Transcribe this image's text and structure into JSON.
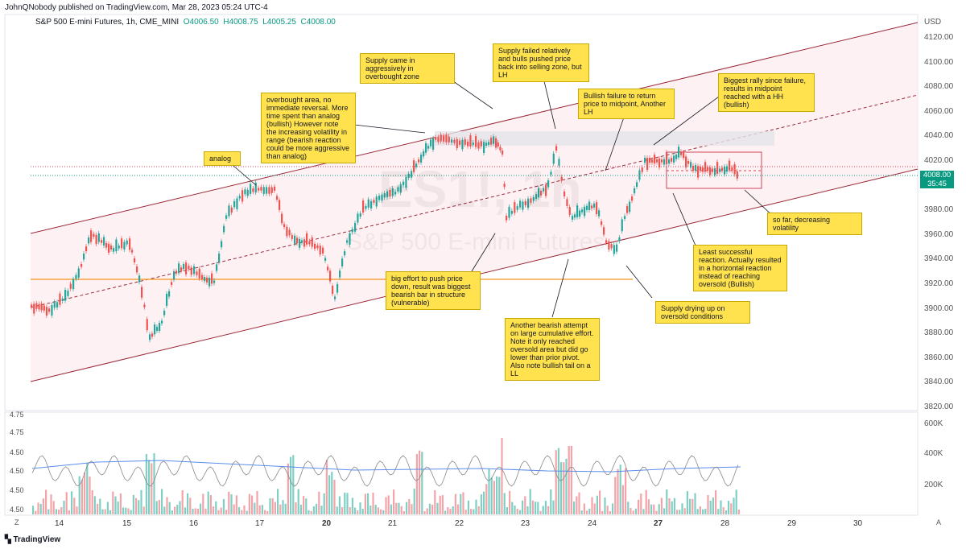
{
  "header": {
    "publisher_line": "JohnQNobody published on TradingView.com, Mar 28, 2023 05:24 UTC-4",
    "symbol_line": "S&P 500 E-mini Futures, 1h, CME_MINI",
    "open": "O4006.50",
    "high": "H4008.75",
    "low": "L4005.25",
    "close": "C4008.00"
  },
  "watermark": {
    "ticker": "ES1!, 1h",
    "name": "S&P 500 E-mini Futures"
  },
  "price_axis": {
    "currency": "USD",
    "ticks": [
      "4120.00",
      "4100.00",
      "4080.00",
      "4060.00",
      "4040.00",
      "4020.00",
      "4000.00",
      "3980.00",
      "3960.00",
      "3940.00",
      "3920.00",
      "3900.00",
      "3880.00",
      "3860.00",
      "3840.00",
      "3820.00"
    ],
    "badge_price": "4008.00",
    "badge_countdown": "35:45"
  },
  "volume_axis": {
    "ticks": [
      "600K",
      "400K",
      "200K"
    ]
  },
  "indicator_axis": {
    "ticks": [
      "4.75",
      "4.75",
      "4.50",
      "4.50",
      "4.50",
      "4.50"
    ]
  },
  "time_axis": {
    "labels": [
      "14",
      "15",
      "16",
      "17",
      "20",
      "21",
      "22",
      "23",
      "24",
      "27",
      "28",
      "29",
      "30"
    ]
  },
  "footer": {
    "logo_text": "TradingView",
    "z_label": "Z",
    "a_label": "A"
  },
  "colors": {
    "up": "#26a69a",
    "down": "#ef5350",
    "channel": "#9b2a3a",
    "hline": "#f7931a",
    "note_bg": "#ffe24d",
    "badge": "#089981"
  },
  "annotations": [
    {
      "id": "analog",
      "text": "analog"
    },
    {
      "id": "overbought",
      "text": "overbought area, no immediate reversal. More time spent than analog (bullish) However note the increasing volatility in range (bearish reaction could be more aggressive than analog)"
    },
    {
      "id": "supply-came",
      "text": "Supply came in aggressively in overbought zone"
    },
    {
      "id": "supply-failed",
      "text": "Supply failed relatively and bulls pushed price back into selling zone, but LH"
    },
    {
      "id": "bullish-failure",
      "text": "Bullish failure to return price to midpoint, Another LH"
    },
    {
      "id": "biggest-rally",
      "text": "Biggest rally since failure, results in midpoint reached with a HH (bullish)"
    },
    {
      "id": "so-far",
      "text": "so far, decreasing volatility"
    },
    {
      "id": "least-successful",
      "text": "Least successful reaction. Actually resulted in a horizontal reaction instead of reaching oversold (Bullish)"
    },
    {
      "id": "supply-drying",
      "text": "Supply drying up on oversold conditions"
    },
    {
      "id": "another-bearish",
      "text": "Another bearish attempt on large cumulative effort. Note it only reached oversold area but did go lower than prior pivot. Also note bullish tail on a LL"
    },
    {
      "id": "big-effort",
      "text": "big effort to push price down, result was biggest bearish bar in structure (vulnerable)"
    }
  ]
}
